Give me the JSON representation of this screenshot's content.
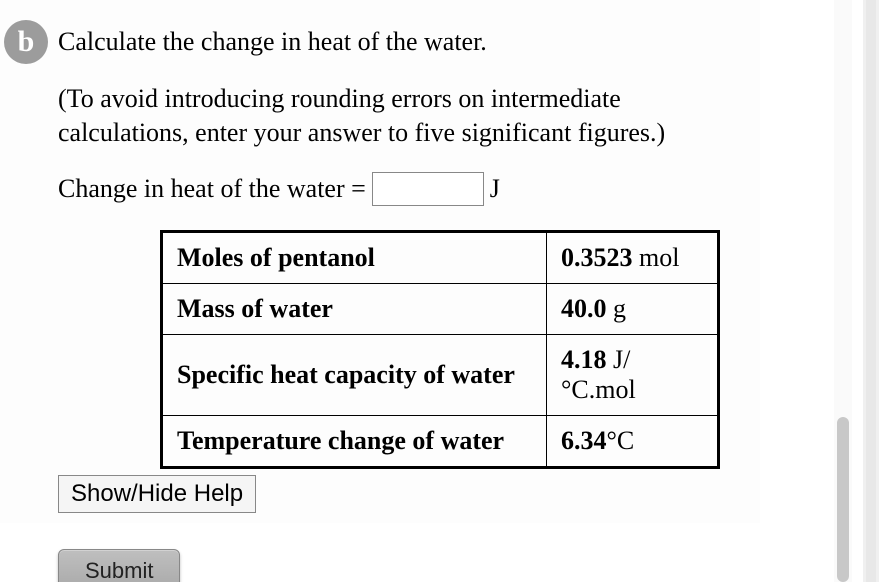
{
  "part": {
    "badge": "b",
    "prompt": "Calculate the change in heat of the water."
  },
  "instruction": "(To avoid introducing rounding errors on intermediate calculations, enter your answer to five significant figures.)",
  "input": {
    "label_before": "Change in heat of the water =",
    "unit_after": "J",
    "value": ""
  },
  "table": {
    "rows": [
      {
        "label": "Moles of pentanol",
        "value": "0.3523",
        "unit": " mol"
      },
      {
        "label": "Mass of water",
        "value": "40.0",
        "unit": " g"
      },
      {
        "label": "Specific heat capacity of water",
        "value": "4.18",
        "unit": " J/°C.mol"
      },
      {
        "label": "Temperature change of water",
        "value": "6.34",
        "unit": "°C"
      }
    ]
  },
  "buttons": {
    "help": "Show/Hide Help",
    "submit": "Submit"
  },
  "colors": {
    "badge_bg": "#9c9c9c",
    "badge_fg": "#ffffff",
    "border": "#000000",
    "submit_bg_top": "#bfbfbf",
    "submit_bg_bottom": "#a8a8a8"
  }
}
